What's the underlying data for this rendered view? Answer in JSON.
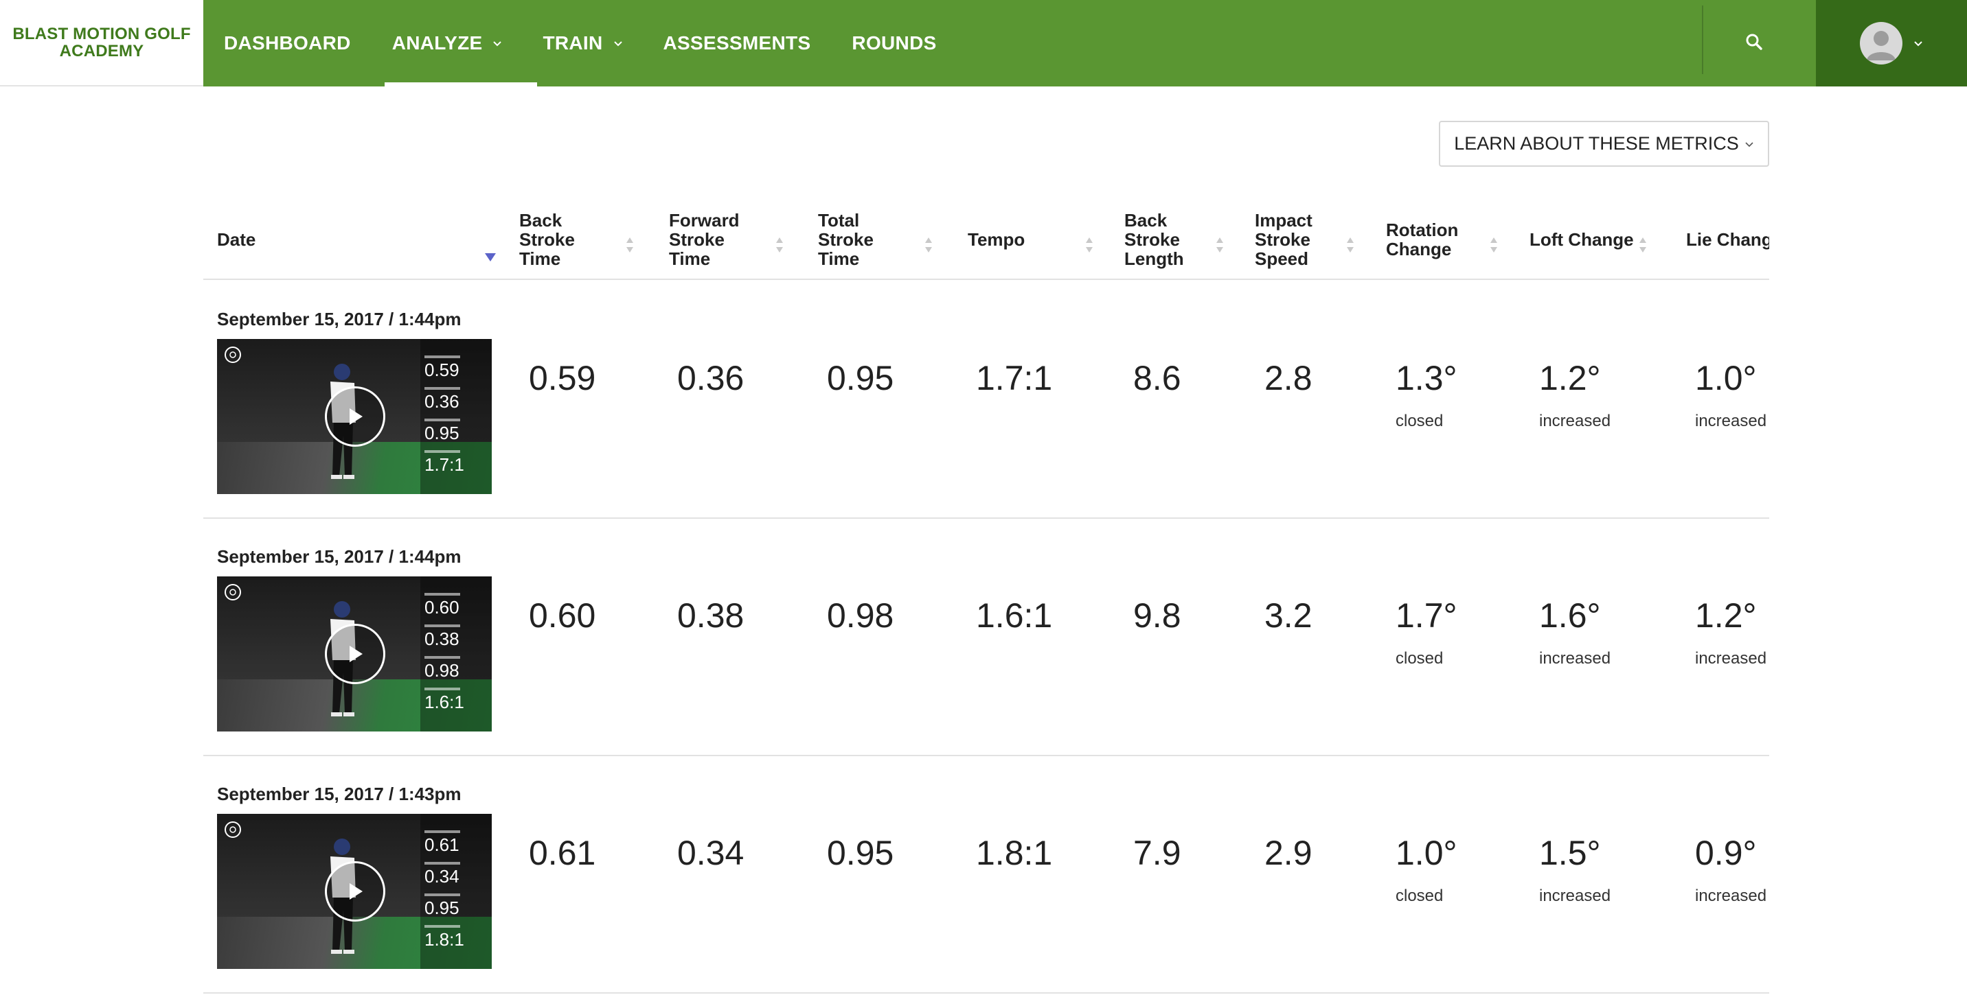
{
  "brand": {
    "name": "BLAST MOTION GOLF\nACADEMY"
  },
  "nav": {
    "items": [
      {
        "label": "DASHBOARD"
      },
      {
        "label": "ANALYZE"
      },
      {
        "label": "TRAIN"
      },
      {
        "label": "ASSESSMENTS"
      },
      {
        "label": "ROUNDS"
      }
    ],
    "active": "ANALYZE"
  },
  "icons": {
    "search": "search-icon",
    "avatar": "user-avatar-icon",
    "chevron": "chevron-down-icon",
    "play": "play-icon",
    "sort": "sort-icon"
  },
  "colors": {
    "nav_green": "#5a9632",
    "profile_green": "#356a18",
    "brand_text": "#3f7a1c",
    "sort_active": "#5b63c9"
  },
  "metrics_button": {
    "label": "LEARN ABOUT THESE METRICS"
  },
  "table": {
    "columns": [
      {
        "label": "Date"
      },
      {
        "label": "Back\nStroke\nTime"
      },
      {
        "label": "Forward\nStroke\nTime"
      },
      {
        "label": "Total\nStroke\nTime"
      },
      {
        "label": "Tempo"
      },
      {
        "label": "Back\nStroke\nLength"
      },
      {
        "label": "Impact\nStroke\nSpeed"
      },
      {
        "label": "Rotation\nChange"
      },
      {
        "label": "Loft Change"
      },
      {
        "label": "Lie Change"
      }
    ],
    "sorted_by": "Date",
    "rows": [
      {
        "date": "September 15, 2017 / 1:44pm",
        "video_overlay": [
          "0.59",
          "0.36",
          "0.95",
          "1.7:1"
        ],
        "back_stroke_time": "0.59",
        "forward_stroke_time": "0.36",
        "total_stroke_time": "0.95",
        "tempo": "1.7:1",
        "back_stroke_length": "8.6",
        "impact_stroke_speed": "2.8",
        "rotation_change": "1.3°",
        "rotation_change_dir": "closed",
        "loft_change": "1.2°",
        "loft_change_dir": "increased",
        "lie_change": "1.0°",
        "lie_change_dir": "increased"
      },
      {
        "date": "September 15, 2017 / 1:44pm",
        "video_overlay": [
          "0.60",
          "0.38",
          "0.98",
          "1.6:1"
        ],
        "back_stroke_time": "0.60",
        "forward_stroke_time": "0.38",
        "total_stroke_time": "0.98",
        "tempo": "1.6:1",
        "back_stroke_length": "9.8",
        "impact_stroke_speed": "3.2",
        "rotation_change": "1.7°",
        "rotation_change_dir": "closed",
        "loft_change": "1.6°",
        "loft_change_dir": "increased",
        "lie_change": "1.2°",
        "lie_change_dir": "increased"
      },
      {
        "date": "September 15, 2017 / 1:43pm",
        "video_overlay": [
          "0.61",
          "0.34",
          "0.95",
          "1.8:1"
        ],
        "back_stroke_time": "0.61",
        "forward_stroke_time": "0.34",
        "total_stroke_time": "0.95",
        "tempo": "1.8:1",
        "back_stroke_length": "7.9",
        "impact_stroke_speed": "2.9",
        "rotation_change": "1.0°",
        "rotation_change_dir": "closed",
        "loft_change": "1.5°",
        "loft_change_dir": "increased",
        "lie_change": "0.9°",
        "lie_change_dir": "increased"
      }
    ]
  }
}
